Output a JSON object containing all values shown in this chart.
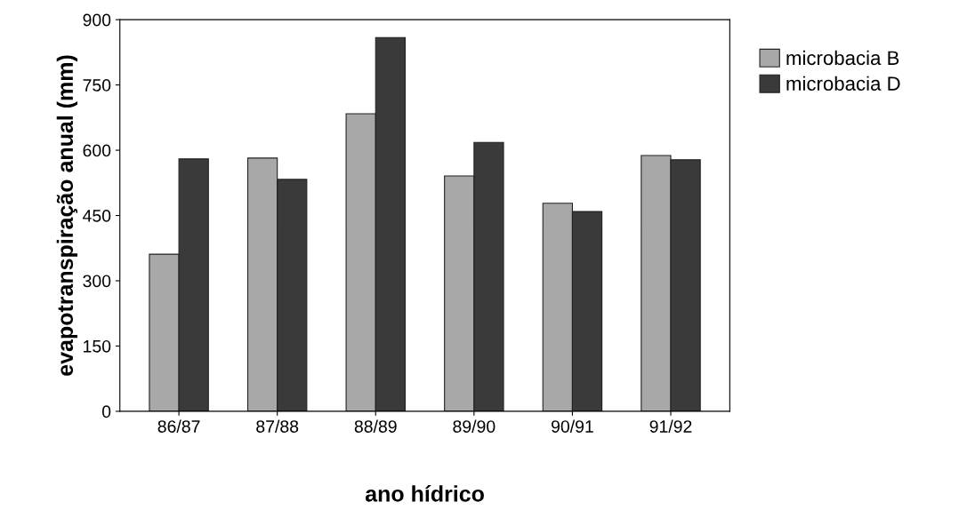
{
  "chart_data": {
    "type": "bar",
    "categories": [
      "86/87",
      "87/88",
      "88/89",
      "89/90",
      "90/91",
      "91/92"
    ],
    "series": [
      {
        "name": "microbacia B",
        "color": "#a8a8a8",
        "values": [
          361,
          582,
          684,
          541,
          478,
          588
        ]
      },
      {
        "name": "microbacia D",
        "color": "#3a3a3a",
        "values": [
          580,
          533,
          859,
          618,
          459,
          578
        ]
      }
    ],
    "xlabel": "ano hídrico",
    "ylabel": "evapotranspiração anual (mm)",
    "ylim": [
      0,
      900
    ],
    "yticks": [
      0,
      150,
      300,
      450,
      600,
      750,
      900
    ],
    "grid": false,
    "legend": "top right"
  }
}
